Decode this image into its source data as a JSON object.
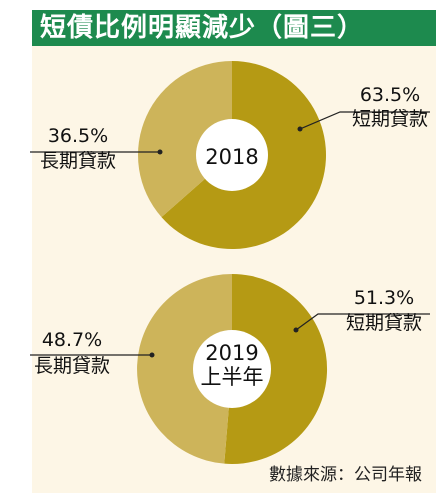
{
  "title": "短債比例明顯減少（圖三）",
  "source": "數據來源：公司年報",
  "colors": {
    "header_bg": "#1d8a4e",
    "panel_bg": "#fdf6e6",
    "short_term": "#b59a14",
    "long_term": "#cdb45a",
    "center": "#ffffff"
  },
  "chart_data": [
    {
      "type": "pie",
      "center_label": [
        "2018"
      ],
      "slices": [
        {
          "label": "短期貸款",
          "value": 63.5,
          "value_label": "63.5%"
        },
        {
          "label": "長期貸款",
          "value": 36.5,
          "value_label": "36.5%"
        }
      ]
    },
    {
      "type": "pie",
      "center_label": [
        "2019",
        "上半年"
      ],
      "slices": [
        {
          "label": "短期貸款",
          "value": 51.3,
          "value_label": "51.3%"
        },
        {
          "label": "長期貸款",
          "value": 48.7,
          "value_label": "48.7%"
        }
      ]
    }
  ]
}
